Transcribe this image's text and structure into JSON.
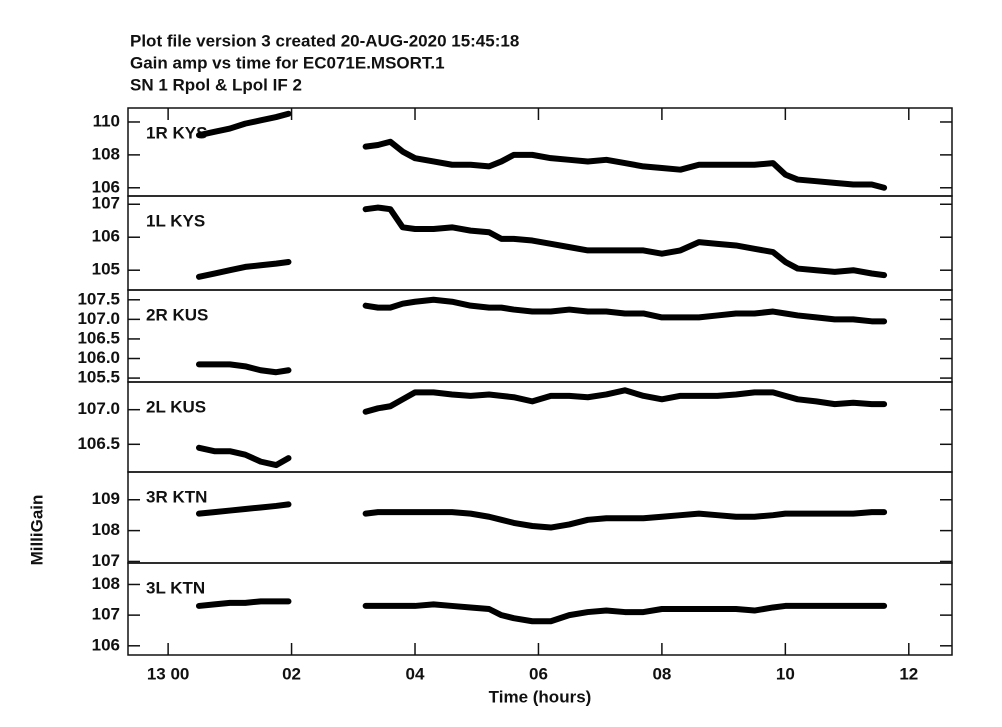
{
  "chart_data": {
    "type": "line",
    "title": [
      "Plot file version 3  created 20-AUG-2020 15:45:18",
      "Gain amp vs time for EC071E.MSORT.1",
      "SN 1  Rpol & Lpol  IF 2"
    ],
    "x_label": "Time (hours)",
    "y_label": "MilliGain",
    "color": "#000000",
    "xlim": [
      -0.65,
      12.7
    ],
    "xticks": [
      {
        "value": 0,
        "label": "13 00"
      },
      {
        "value": 2,
        "label": "02"
      },
      {
        "value": 4,
        "label": "04"
      },
      {
        "value": 6,
        "label": "06"
      },
      {
        "value": 8,
        "label": "08"
      },
      {
        "value": 10,
        "label": "10"
      },
      {
        "value": 12,
        "label": "12"
      }
    ],
    "x": [
      0.5,
      0.75,
      1,
      1.25,
      1.5,
      1.75,
      1.95,
      2.6,
      3.2,
      3.4,
      3.6,
      3.8,
      4,
      4.3,
      4.6,
      4.9,
      5.2,
      5.4,
      5.6,
      5.9,
      6.2,
      6.5,
      6.8,
      7.1,
      7.4,
      7.7,
      8,
      8.3,
      8.6,
      8.9,
      9.2,
      9.5,
      9.8,
      10,
      10.2,
      10.5,
      10.8,
      11.1,
      11.4,
      11.6
    ],
    "panels": [
      {
        "label": "1R KYS",
        "ylim": [
          105.5,
          110.85
        ],
        "yticks": [
          106,
          108,
          110
        ],
        "values": [
          109.2,
          109.4,
          109.6,
          109.9,
          110.1,
          110.3,
          110.5,
          null,
          108.5,
          108.6,
          108.8,
          108.2,
          107.8,
          107.6,
          107.4,
          107.4,
          107.3,
          107.6,
          108.0,
          108.0,
          107.8,
          107.7,
          107.6,
          107.7,
          107.5,
          107.3,
          107.2,
          107.1,
          107.4,
          107.4,
          107.4,
          107.4,
          107.5,
          106.8,
          106.5,
          106.4,
          106.3,
          106.2,
          106.2,
          106.0
        ]
      },
      {
        "label": "1L KYS",
        "ylim": [
          104.4,
          107.25
        ],
        "yticks": [
          105,
          106,
          107
        ],
        "values": [
          104.8,
          104.9,
          105.0,
          105.1,
          105.15,
          105.2,
          105.25,
          null,
          106.85,
          106.9,
          106.85,
          106.3,
          106.25,
          106.25,
          106.3,
          106.2,
          106.15,
          105.95,
          105.95,
          105.9,
          105.8,
          105.7,
          105.6,
          105.6,
          105.6,
          105.6,
          105.5,
          105.6,
          105.85,
          105.8,
          105.75,
          105.65,
          105.55,
          105.25,
          105.05,
          105.0,
          104.95,
          105.0,
          104.9,
          104.85
        ]
      },
      {
        "label": "2R KUS",
        "ylim": [
          105.4,
          107.75
        ],
        "yticks": [
          105.5,
          {
            "value": 106,
            "label": "106.0"
          },
          106.5,
          {
            "value": 107,
            "label": "107.0"
          },
          107.5
        ],
        "values": [
          105.85,
          105.85,
          105.85,
          105.8,
          105.7,
          105.65,
          105.7,
          null,
          107.35,
          107.3,
          107.3,
          107.4,
          107.45,
          107.5,
          107.45,
          107.35,
          107.3,
          107.3,
          107.25,
          107.2,
          107.2,
          107.25,
          107.2,
          107.2,
          107.15,
          107.15,
          107.05,
          107.05,
          107.05,
          107.1,
          107.15,
          107.15,
          107.2,
          107.15,
          107.1,
          107.05,
          107.0,
          107.0,
          106.95,
          106.95
        ]
      },
      {
        "label": "2L KUS",
        "ylim": [
          106.1,
          107.4
        ],
        "yticks": [
          106.5,
          {
            "value": 107,
            "label": "107.0"
          }
        ],
        "values": [
          106.45,
          106.4,
          106.4,
          106.35,
          106.25,
          106.2,
          106.3,
          null,
          106.97,
          107.02,
          107.05,
          107.15,
          107.25,
          107.25,
          107.22,
          107.2,
          107.22,
          107.2,
          107.18,
          107.12,
          107.2,
          107.2,
          107.18,
          107.22,
          107.28,
          107.2,
          107.15,
          107.2,
          107.2,
          107.2,
          107.22,
          107.25,
          107.25,
          107.2,
          107.15,
          107.12,
          107.08,
          107.1,
          107.08,
          107.08
        ]
      },
      {
        "label": "3R KTN",
        "ylim": [
          106.95,
          109.9
        ],
        "yticks": [
          107,
          108,
          109
        ],
        "values": [
          108.55,
          108.6,
          108.65,
          108.7,
          108.75,
          108.8,
          108.85,
          null,
          108.55,
          108.6,
          108.6,
          108.6,
          108.6,
          108.6,
          108.6,
          108.55,
          108.45,
          108.35,
          108.25,
          108.15,
          108.1,
          108.2,
          108.35,
          108.4,
          108.4,
          108.4,
          108.45,
          108.5,
          108.55,
          108.5,
          108.45,
          108.45,
          108.5,
          108.55,
          108.55,
          108.55,
          108.55,
          108.55,
          108.6,
          108.6
        ]
      },
      {
        "label": "3L KTN",
        "ylim": [
          105.7,
          108.7
        ],
        "yticks": [
          106,
          107,
          108
        ],
        "values": [
          107.3,
          107.35,
          107.4,
          107.4,
          107.45,
          107.45,
          107.45,
          null,
          107.3,
          107.3,
          107.3,
          107.3,
          107.3,
          107.35,
          107.3,
          107.25,
          107.2,
          107.0,
          106.9,
          106.8,
          106.8,
          107.0,
          107.1,
          107.15,
          107.1,
          107.1,
          107.2,
          107.2,
          107.2,
          107.2,
          107.2,
          107.15,
          107.25,
          107.3,
          107.3,
          107.3,
          107.3,
          107.3,
          107.3,
          107.3
        ]
      }
    ]
  }
}
